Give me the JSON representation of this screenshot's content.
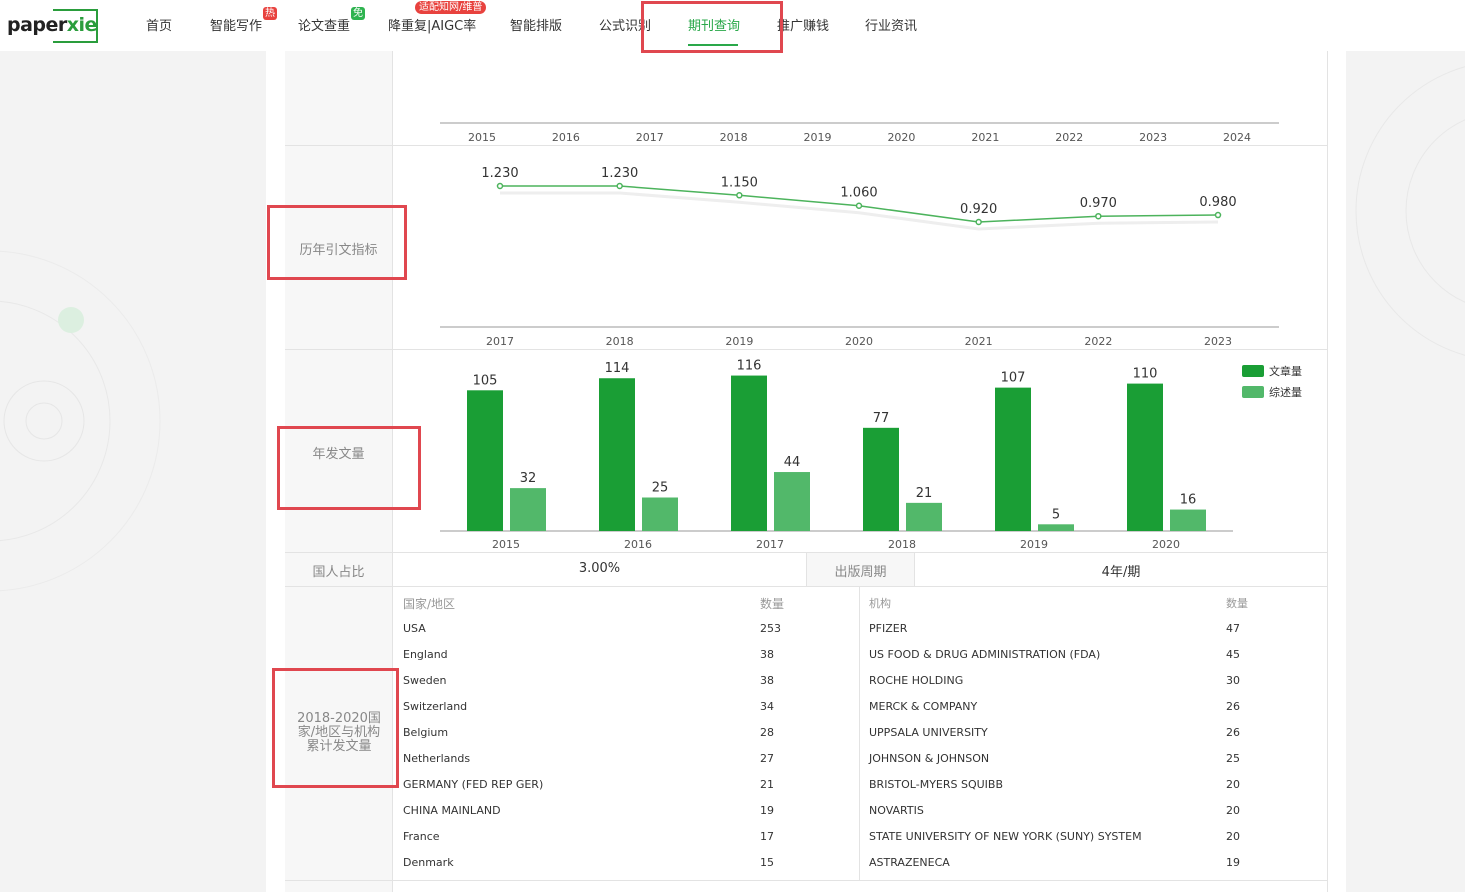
{
  "nav": {
    "logo_a": "paper",
    "logo_b": "xie",
    "items": [
      "首页",
      "智能写作",
      "论文查重",
      "降重复|AIGC率",
      "智能排版",
      "公式识别",
      "期刊查询",
      "推广赚钱",
      "行业资讯"
    ],
    "badge_hot": "热",
    "badge_free": "免",
    "badge_cnki": "适配知网/维普"
  },
  "sections": {
    "citation_label": "历年引文指标",
    "articles_label": "年发文量",
    "domestic_label": "国人占比",
    "domestic_value": "3.00%",
    "cycle_label": "出版周期",
    "cycle_value": "4年/期",
    "country_label": "2018-2020国家/地区与机构累计发文量"
  },
  "countries": {
    "headers": [
      "国家/地区",
      "数量"
    ],
    "rows": [
      [
        "USA",
        "253"
      ],
      [
        "England",
        "38"
      ],
      [
        "Sweden",
        "38"
      ],
      [
        "Switzerland",
        "34"
      ],
      [
        "Belgium",
        "28"
      ],
      [
        "Netherlands",
        "27"
      ],
      [
        "GERMANY (FED REP GER)",
        "21"
      ],
      [
        "CHINA MAINLAND",
        "19"
      ],
      [
        "France",
        "17"
      ],
      [
        "Denmark",
        "15"
      ]
    ]
  },
  "institutions": {
    "headers": [
      "机构",
      "数量"
    ],
    "rows": [
      [
        "PFIZER",
        "47"
      ],
      [
        "US FOOD & DRUG ADMINISTRATION (FDA)",
        "45"
      ],
      [
        "ROCHE HOLDING",
        "30"
      ],
      [
        "MERCK & COMPANY",
        "26"
      ],
      [
        "UPPSALA UNIVERSITY",
        "26"
      ],
      [
        "JOHNSON & JOHNSON",
        "25"
      ],
      [
        "BRISTOL-MYERS SQUIBB",
        "20"
      ],
      [
        "NOVARTIS",
        "20"
      ],
      [
        "STATE UNIVERSITY OF NEW YORK (SUNY) SYSTEM",
        "20"
      ],
      [
        "ASTRAZENECA",
        "19"
      ]
    ]
  },
  "chart_data": [
    {
      "type": "line",
      "title": "",
      "x": [
        "2015",
        "2016",
        "2017",
        "2018",
        "2019",
        "2020",
        "2021",
        "2022",
        "2023",
        "2024"
      ],
      "series": []
    },
    {
      "type": "line",
      "title": "",
      "x": [
        "2017",
        "2018",
        "2019",
        "2020",
        "2021",
        "2022",
        "2023"
      ],
      "series": [
        {
          "values": [
            1.23,
            1.23,
            1.15,
            1.06,
            0.92,
            0.97,
            0.98
          ]
        }
      ],
      "labels": [
        "1.230",
        "1.230",
        "1.150",
        "1.060",
        "0.920",
        "0.970",
        "0.980"
      ],
      "color": "#4cb35c",
      "ylim": [
        0,
        1.3
      ]
    },
    {
      "type": "bar",
      "title": "",
      "categories": [
        "2015",
        "2016",
        "2017",
        "2018",
        "2019",
        "2020"
      ],
      "series": [
        {
          "name": "文章量",
          "values": [
            105,
            114,
            116,
            77,
            107,
            110
          ],
          "color": "#1a9e35"
        },
        {
          "name": "综述量",
          "values": [
            32,
            25,
            44,
            21,
            5,
            16
          ],
          "color": "#52b86a"
        }
      ],
      "legend": "top-right"
    }
  ]
}
